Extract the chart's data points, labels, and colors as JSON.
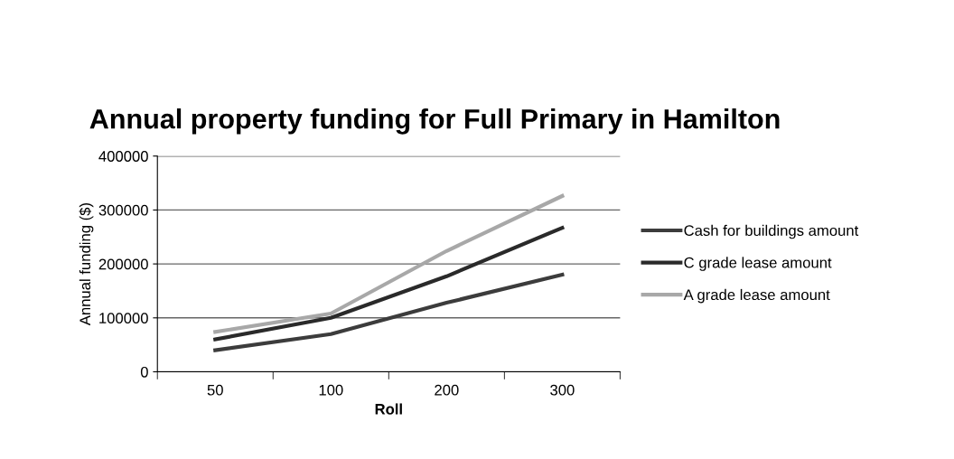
{
  "chart_data": {
    "type": "line",
    "title": "Annual property funding for Full Primary in Hamilton",
    "xlabel": "Roll",
    "ylabel": "Annual funding ($)",
    "categories": [
      "50",
      "100",
      "200",
      "300"
    ],
    "series": [
      {
        "name": "Cash for buildings amount",
        "color": "#3c3c3c",
        "values": [
          40000,
          70000,
          128000,
          180000
        ]
      },
      {
        "name": "C grade lease amount",
        "color": "#2a2a2a",
        "values": [
          60000,
          100000,
          177000,
          267000
        ]
      },
      {
        "name": "A grade lease amount",
        "color": "#a8a8a8",
        "values": [
          74000,
          108000,
          224000,
          326000
        ]
      }
    ],
    "ylim": [
      0,
      400000
    ],
    "yticks": [
      0,
      100000,
      200000,
      300000,
      400000
    ],
    "grid": "y",
    "legend": "right",
    "marker": "none",
    "line_style": "solid"
  }
}
